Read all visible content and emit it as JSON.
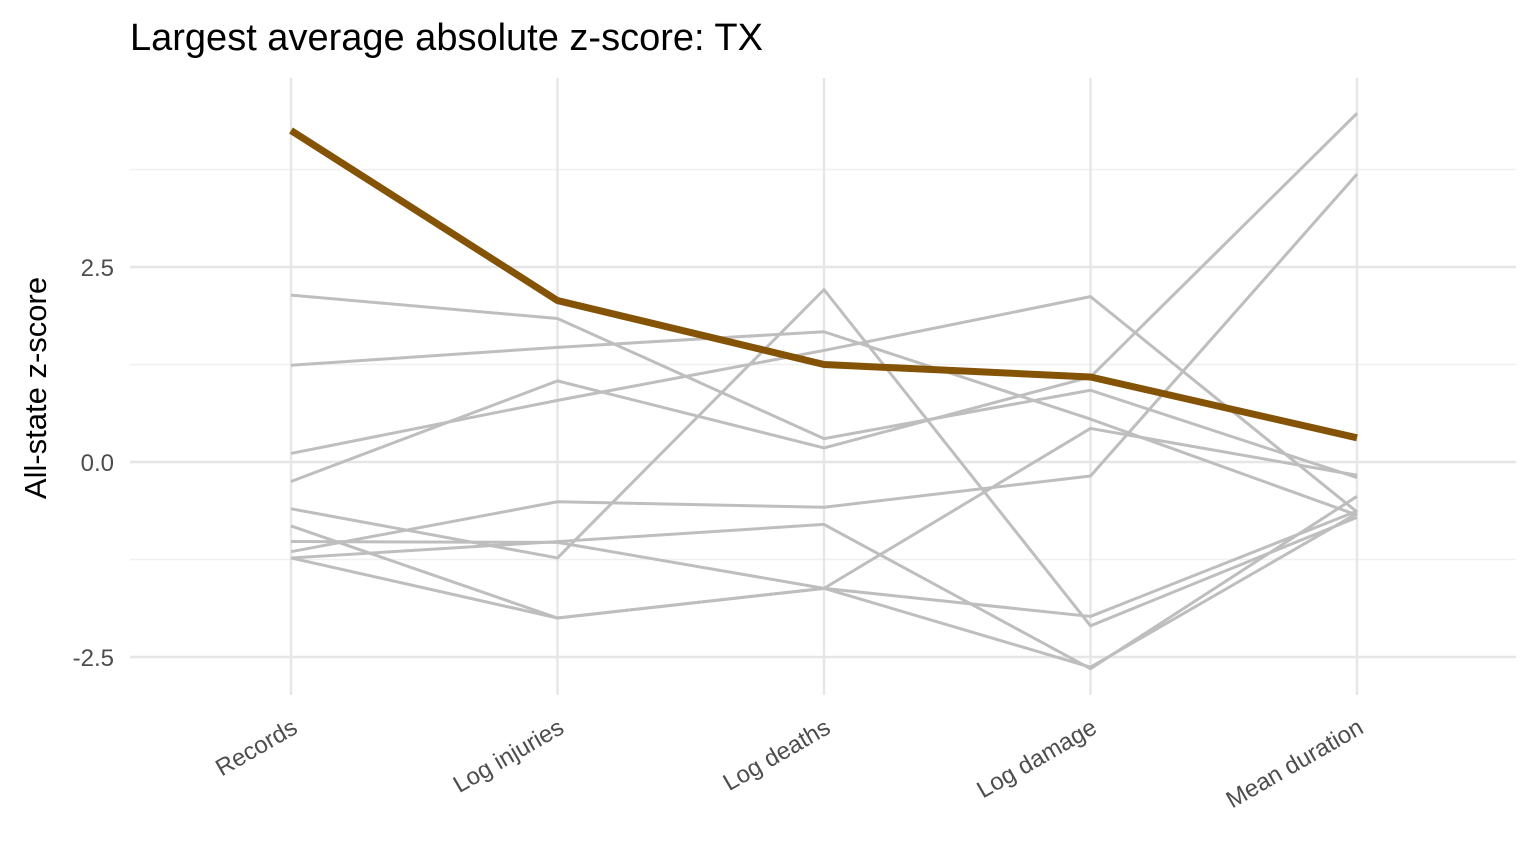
{
  "chart_data": {
    "type": "line",
    "title": "Largest average absolute z-score: TX",
    "xlabel": "",
    "ylabel": "All-state z-score",
    "categories": [
      "Records",
      "Log injuries",
      "Log deaths",
      "Log damage",
      "Mean duration"
    ],
    "yticks": [
      {
        "value": -2.5,
        "label": "-2.5"
      },
      {
        "value": 0,
        "label": "0.0"
      },
      {
        "value": 2.5,
        "label": "2.5"
      }
    ],
    "ylim": [
      -3.0,
      4.9
    ],
    "grid": true,
    "highlight": {
      "name": "TX",
      "color": "#845306",
      "values": [
        4.25,
        2.07,
        1.25,
        1.09,
        0.31
      ]
    },
    "background_color": "#bebebe",
    "background_series": [
      {
        "values": [
          2.14,
          1.84,
          0.3,
          0.92,
          -0.2
        ]
      },
      {
        "values": [
          1.24,
          1.47,
          1.67,
          0.55,
          -0.68
        ]
      },
      {
        "values": [
          0.11,
          0.79,
          1.43,
          2.12,
          -0.64
        ]
      },
      {
        "values": [
          -0.25,
          1.04,
          0.18,
          1.09,
          4.47
        ]
      },
      {
        "values": [
          -0.6,
          -1.23,
          2.21,
          -2.1,
          -0.71
        ]
      },
      {
        "values": [
          -0.82,
          -2.0,
          -1.62,
          0.43,
          -0.17
        ]
      },
      {
        "values": [
          -1.02,
          -1.03,
          -1.62,
          -2.63,
          -0.66
        ]
      },
      {
        "values": [
          -1.15,
          -0.51,
          -0.58,
          -0.18,
          3.69
        ]
      },
      {
        "values": [
          -1.23,
          -2.0,
          -1.62,
          -1.98,
          -0.63
        ]
      },
      {
        "values": [
          -1.23,
          -1.02,
          -0.8,
          -2.65,
          -0.44
        ]
      }
    ]
  }
}
